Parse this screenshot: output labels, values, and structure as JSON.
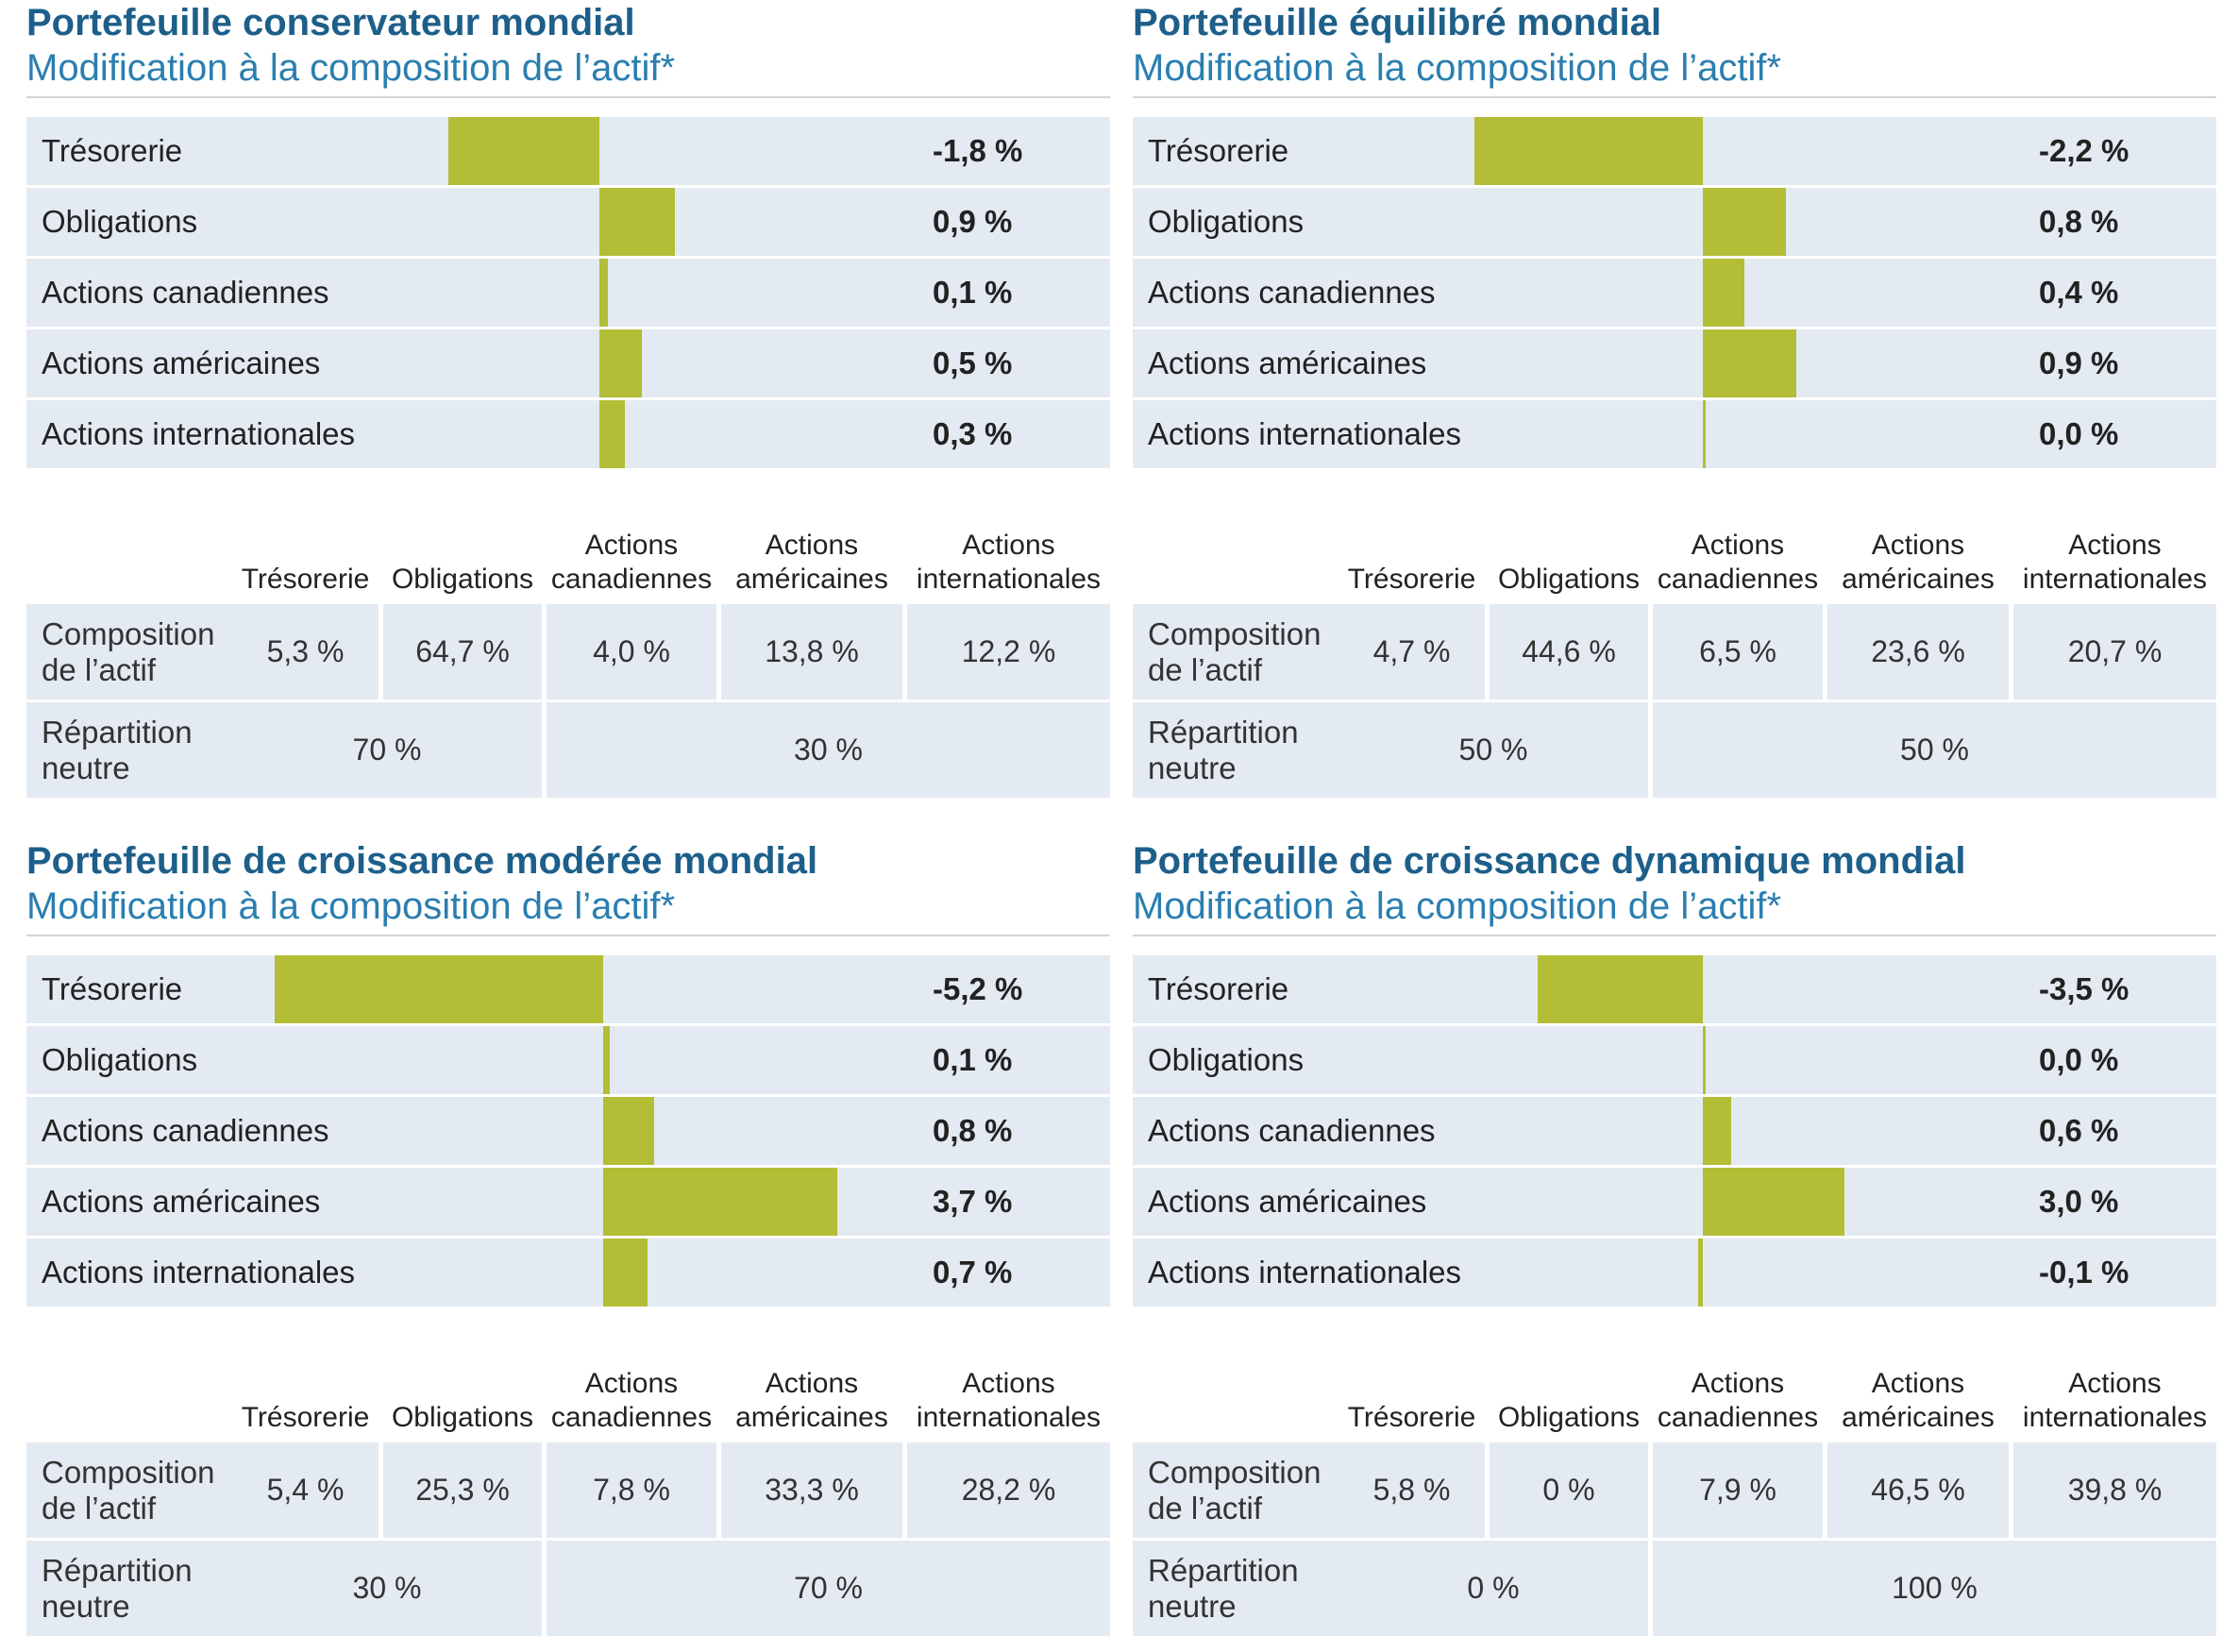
{
  "colors": {
    "bar": "#b3bd35",
    "row_bg": "#e3eaf2",
    "title": "#1d5f8a",
    "subtitle": "#2a7eb0"
  },
  "chart_data": [
    {
      "type": "bar",
      "title": "Portefeuille conservateur mondial",
      "subtitle": "Modification à la composition de l’actif*",
      "categories": [
        "Trésorerie",
        "Obligations",
        "Actions canadiennes",
        "Actions américaines",
        "Actions internationales"
      ],
      "values": [
        -1.8,
        0.9,
        0.1,
        0.5,
        0.3
      ],
      "value_labels": [
        "-1,8 %",
        "0,9 %",
        "0,1 %",
        "0,5 %",
        "0,3 %"
      ],
      "table": {
        "columns": [
          "Trésorerie",
          "Obligations",
          "Actions canadiennes",
          "Actions américaines",
          "Actions internationales"
        ],
        "row1_label": "Composition de l’actif",
        "row1": [
          "5,3 %",
          "64,7 %",
          "4,0 %",
          "13,8 %",
          "12,2 %"
        ],
        "row2_label": "Répartition neutre",
        "row2": [
          "70 %",
          "30 %"
        ]
      }
    },
    {
      "type": "bar",
      "title": "Portefeuille équilibré mondial",
      "subtitle": "Modification à la composition de l’actif*",
      "categories": [
        "Trésorerie",
        "Obligations",
        "Actions canadiennes",
        "Actions américaines",
        "Actions internationales"
      ],
      "values": [
        -2.2,
        0.8,
        0.4,
        0.9,
        0.0
      ],
      "value_labels": [
        "-2,2 %",
        "0,8 %",
        "0,4 %",
        "0,9 %",
        "0,0 %"
      ],
      "table": {
        "columns": [
          "Trésorerie",
          "Obligations",
          "Actions canadiennes",
          "Actions américaines",
          "Actions internationales"
        ],
        "row1_label": "Composition de l’actif",
        "row1": [
          "4,7 %",
          "44,6 %",
          "6,5 %",
          "23,6 %",
          "20,7 %"
        ],
        "row2_label": "Répartition neutre",
        "row2": [
          "50 %",
          "50 %"
        ]
      }
    },
    {
      "type": "bar",
      "title": "Portefeuille de croissance modérée mondial",
      "subtitle": "Modification à la composition de l’actif*",
      "categories": [
        "Trésorerie",
        "Obligations",
        "Actions canadiennes",
        "Actions américaines",
        "Actions internationales"
      ],
      "values": [
        -5.2,
        0.1,
        0.8,
        3.7,
        0.7
      ],
      "value_labels": [
        "-5,2 %",
        "0,1 %",
        "0,8 %",
        "3,7 %",
        "0,7 %"
      ],
      "table": {
        "columns": [
          "Trésorerie",
          "Obligations",
          "Actions canadiennes",
          "Actions américaines",
          "Actions internationales"
        ],
        "row1_label": "Composition de l’actif",
        "row1": [
          "5,4 %",
          "25,3 %",
          "7,8 %",
          "33,3 %",
          "28,2 %"
        ],
        "row2_label": "Répartition neutre",
        "row2": [
          "30 %",
          "70 %"
        ]
      }
    },
    {
      "type": "bar",
      "title": "Portefeuille de croissance dynamique mondial",
      "subtitle": "Modification à la composition de l’actif*",
      "categories": [
        "Trésorerie",
        "Obligations",
        "Actions canadiennes",
        "Actions américaines",
        "Actions internationales"
      ],
      "values": [
        -3.5,
        0.0,
        0.6,
        3.0,
        -0.1
      ],
      "value_labels": [
        "-3,5 %",
        "0,0 %",
        "0,6 %",
        "3,0 %",
        "-0,1 %"
      ],
      "table": {
        "columns": [
          "Trésorerie",
          "Obligations",
          "Actions canadiennes",
          "Actions américaines",
          "Actions internationales"
        ],
        "row1_label": "Composition de l’actif",
        "row1": [
          "5,8 %",
          "0 %",
          "7,9 %",
          "46,5 %",
          "39,8 %"
        ],
        "row2_label": "Répartition neutre",
        "row2": [
          "0 %",
          "100 %"
        ]
      }
    }
  ]
}
